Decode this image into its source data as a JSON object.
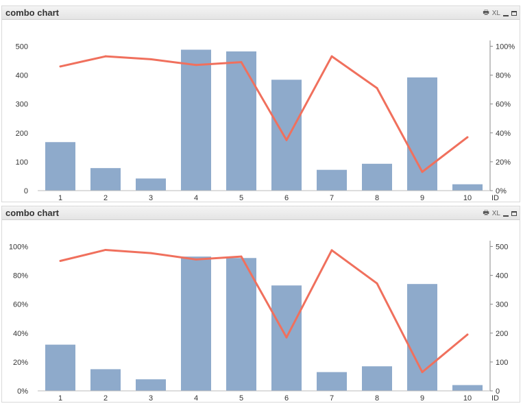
{
  "charts": [
    {
      "title": "combo chart",
      "xl_label": "XL",
      "left_axis": "count",
      "right_axis": "pct"
    },
    {
      "title": "combo chart",
      "xl_label": "XL",
      "left_axis": "pct",
      "right_axis": "count"
    }
  ],
  "chart_data": [
    {
      "type": "bar",
      "title": "combo chart",
      "xlabel": "ID",
      "categories": [
        "1",
        "2",
        "3",
        "4",
        "5",
        "6",
        "7",
        "8",
        "9",
        "10"
      ],
      "series": [
        {
          "type": "bar",
          "axis": "left",
          "values": [
            168,
            78,
            42,
            488,
            482,
            384,
            72,
            93,
            392,
            22
          ],
          "color": "#8eaacb"
        },
        {
          "type": "line",
          "axis": "right",
          "values": [
            86,
            93,
            91,
            87,
            89,
            35,
            93,
            71,
            13,
            37
          ],
          "color": "#f0705d"
        }
      ],
      "left_ylim": [
        0,
        520
      ],
      "left_ticks": [
        0,
        100,
        200,
        300,
        400,
        500
      ],
      "left_tick_labels": [
        "0",
        "100",
        "200",
        "300",
        "400",
        "500"
      ],
      "right_ylim": [
        0,
        104
      ],
      "right_ticks": [
        0,
        20,
        40,
        60,
        80,
        100
      ],
      "right_tick_labels": [
        "0%",
        "20%",
        "40%",
        "60%",
        "80%",
        "100%"
      ]
    },
    {
      "type": "bar",
      "title": "combo chart",
      "xlabel": "ID",
      "categories": [
        "1",
        "2",
        "3",
        "4",
        "5",
        "6",
        "7",
        "8",
        "9",
        "10"
      ],
      "series": [
        {
          "type": "bar",
          "axis": "left",
          "values": [
            32,
            15,
            8,
            93,
            92,
            73,
            13,
            17,
            74,
            4
          ],
          "color": "#8eaacb"
        },
        {
          "type": "line",
          "axis": "right",
          "values": [
            450,
            488,
            477,
            455,
            465,
            185,
            487,
            372,
            65,
            195
          ],
          "color": "#f0705d"
        }
      ],
      "left_ylim": [
        0,
        104
      ],
      "left_ticks": [
        0,
        20,
        40,
        60,
        80,
        100
      ],
      "left_tick_labels": [
        "0%",
        "20%",
        "40%",
        "60%",
        "80%",
        "100%"
      ],
      "right_ylim": [
        0,
        520
      ],
      "right_ticks": [
        0,
        100,
        200,
        300,
        400,
        500
      ],
      "right_tick_labels": [
        "0",
        "100",
        "200",
        "300",
        "400",
        "500"
      ]
    }
  ]
}
